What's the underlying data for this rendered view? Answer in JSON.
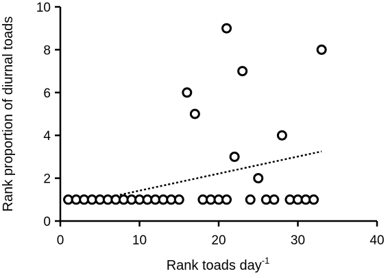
{
  "chart_data": {
    "type": "scatter",
    "xlabel": "Rank toads day",
    "xlabel_superscript": "-1",
    "ylabel": "Rank proportion of diurnal toads",
    "xlim": [
      0,
      40
    ],
    "ylim": [
      0,
      10
    ],
    "x_ticks": [
      0,
      10,
      20,
      30,
      40
    ],
    "y_ticks": [
      0,
      2,
      4,
      6,
      8,
      10
    ],
    "grid": false,
    "legend": "none",
    "marker": "open-circle",
    "marker_color": "#000000",
    "points": [
      {
        "x": 1,
        "y": 1
      },
      {
        "x": 2,
        "y": 1
      },
      {
        "x": 3,
        "y": 1
      },
      {
        "x": 4,
        "y": 1
      },
      {
        "x": 5,
        "y": 1
      },
      {
        "x": 6,
        "y": 1
      },
      {
        "x": 7,
        "y": 1
      },
      {
        "x": 8,
        "y": 1
      },
      {
        "x": 9,
        "y": 1
      },
      {
        "x": 10,
        "y": 1
      },
      {
        "x": 11,
        "y": 1
      },
      {
        "x": 12,
        "y": 1
      },
      {
        "x": 13,
        "y": 1
      },
      {
        "x": 14,
        "y": 1
      },
      {
        "x": 15,
        "y": 1
      },
      {
        "x": 16,
        "y": 6
      },
      {
        "x": 17,
        "y": 5
      },
      {
        "x": 18,
        "y": 1
      },
      {
        "x": 19,
        "y": 1
      },
      {
        "x": 20,
        "y": 1
      },
      {
        "x": 21,
        "y": 9
      },
      {
        "x": 21,
        "y": 1
      },
      {
        "x": 22,
        "y": 3
      },
      {
        "x": 23,
        "y": 7
      },
      {
        "x": 24,
        "y": 1
      },
      {
        "x": 25,
        "y": 2
      },
      {
        "x": 26,
        "y": 1
      },
      {
        "x": 27,
        "y": 1
      },
      {
        "x": 28,
        "y": 4
      },
      {
        "x": 29,
        "y": 1
      },
      {
        "x": 30,
        "y": 1
      },
      {
        "x": 31,
        "y": 1
      },
      {
        "x": 32,
        "y": 1
      },
      {
        "x": 33,
        "y": 8
      }
    ],
    "trendline": {
      "style": "dotted",
      "x_start": 6,
      "y_start": 1.1,
      "x_end": 33,
      "y_end": 3.25
    }
  }
}
